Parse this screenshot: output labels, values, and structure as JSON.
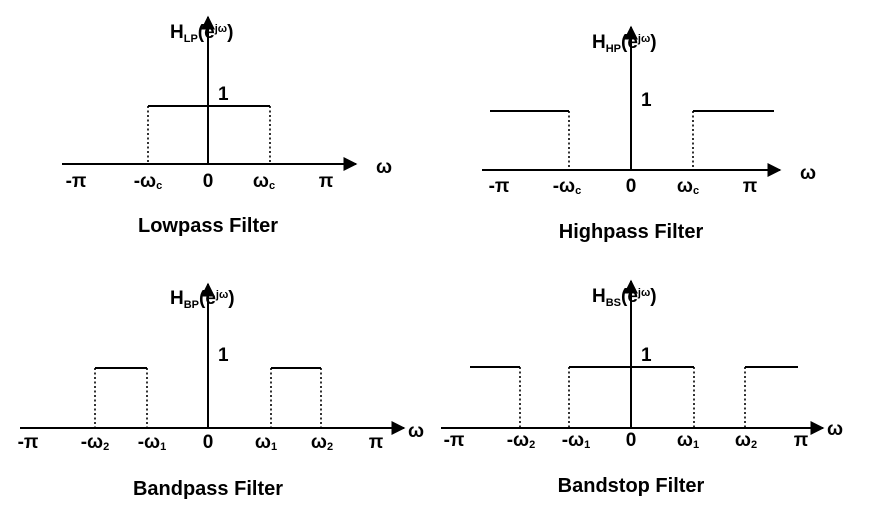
{
  "colors": {
    "ink": "#000000",
    "background": "#ffffff"
  },
  "panels": [
    {
      "title": "Lowpass Filter",
      "ylabel": {
        "base": "H",
        "sub": "LP",
        "paren_open": "(e",
        "sup": "jω",
        "paren_close": ")"
      },
      "xlabel": "ω",
      "level_label": "1",
      "ticks": [
        {
          "main": "-π",
          "sub": ""
        },
        {
          "main": "-ω",
          "sub": "c"
        },
        {
          "main": "0",
          "sub": ""
        },
        {
          "main": "ω",
          "sub": "c"
        },
        {
          "main": "π",
          "sub": ""
        }
      ],
      "response": {
        "passbands": [
          [
            "-ωc",
            "ωc"
          ]
        ],
        "gain": 1
      }
    },
    {
      "title": "Highpass Filter",
      "ylabel": {
        "base": "H",
        "sub": "HP",
        "paren_open": "(e",
        "sup": "jω",
        "paren_close": ")"
      },
      "xlabel": "ω",
      "level_label": "1",
      "ticks": [
        {
          "main": "-π",
          "sub": ""
        },
        {
          "main": "-ω",
          "sub": "c"
        },
        {
          "main": "0",
          "sub": ""
        },
        {
          "main": "ω",
          "sub": "c"
        },
        {
          "main": "π",
          "sub": ""
        }
      ],
      "response": {
        "passbands": [
          [
            "-π",
            "-ωc"
          ],
          [
            "ωc",
            "π"
          ]
        ],
        "gain": 1
      }
    },
    {
      "title": "Bandpass Filter",
      "ylabel": {
        "base": "H",
        "sub": "BP",
        "paren_open": "(e",
        "sup": "jω",
        "paren_close": ")"
      },
      "xlabel": "ω",
      "level_label": "1",
      "ticks": [
        {
          "main": "-π",
          "sub": ""
        },
        {
          "main": "-ω",
          "sub": "2"
        },
        {
          "main": "-ω",
          "sub": "1"
        },
        {
          "main": "0",
          "sub": ""
        },
        {
          "main": "ω",
          "sub": "1"
        },
        {
          "main": "ω",
          "sub": "2"
        },
        {
          "main": "π",
          "sub": ""
        }
      ],
      "response": {
        "passbands": [
          [
            "-ω2",
            "-ω1"
          ],
          [
            "ω1",
            "ω2"
          ]
        ],
        "gain": 1
      }
    },
    {
      "title": "Bandstop Filter",
      "ylabel": {
        "base": "H",
        "sub": "BS",
        "paren_open": "(e",
        "sup": "jω",
        "paren_close": ")"
      },
      "xlabel": "ω",
      "level_label": "1",
      "ticks": [
        {
          "main": "-π",
          "sub": ""
        },
        {
          "main": "-ω",
          "sub": "2"
        },
        {
          "main": "-ω",
          "sub": "1"
        },
        {
          "main": "0",
          "sub": ""
        },
        {
          "main": "ω",
          "sub": "1"
        },
        {
          "main": "ω",
          "sub": "2"
        },
        {
          "main": "π",
          "sub": ""
        }
      ],
      "response": {
        "passbands": [
          [
            "-π",
            "-ω2"
          ],
          [
            "-ω1",
            "ω1"
          ],
          [
            "ω2",
            "π"
          ]
        ],
        "gain": 1
      }
    }
  ]
}
